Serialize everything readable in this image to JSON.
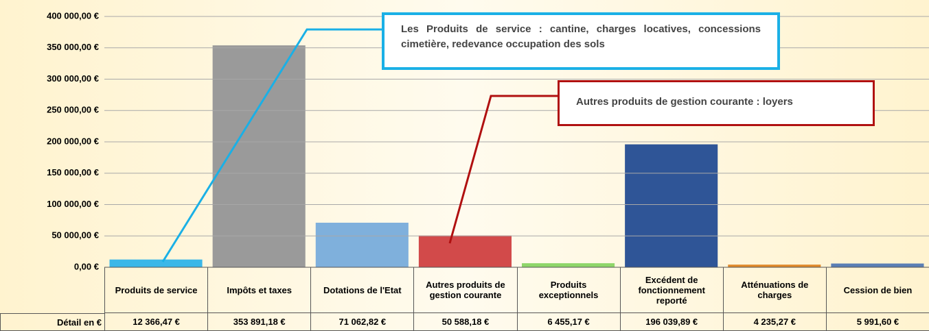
{
  "chart_data": {
    "type": "bar",
    "categories": [
      "Produits de service",
      "Impôts et taxes",
      "Dotations de l'Etat",
      "Autres produits de gestion courante",
      "Produits exceptionnels",
      "Excédent de fonctionnement reporté",
      "Atténuations de charges",
      "Cession de bien"
    ],
    "values": [
      12366.47,
      353891.18,
      71062.82,
      50588.18,
      6455.17,
      196039.89,
      4235.27,
      5991.6
    ],
    "value_labels": [
      "12 366,47 €",
      "353 891,18 €",
      "71 062,82 €",
      "50 588,18 €",
      "6 455,17 €",
      "196 039,89 €",
      "4 235,27 €",
      "5 991,60 €"
    ],
    "colors": [
      "#3bb7e8",
      "#9a9a9a",
      "#7fb0dc",
      "#d24a4a",
      "#8fd66a",
      "#2f5597",
      "#e08a2c",
      "#5b7fb5"
    ],
    "table_row_label": "Détail en €",
    "ylim": [
      0,
      400000
    ],
    "yticks": [
      {
        "value": 0,
        "label": "0,00 €"
      },
      {
        "value": 50000,
        "label": "50 000,00 €"
      },
      {
        "value": 100000,
        "label": "100 000,00 €"
      },
      {
        "value": 150000,
        "label": "150 000,00 €"
      },
      {
        "value": 200000,
        "label": "200 000,00 €"
      },
      {
        "value": 250000,
        "label": "250 000,00 €"
      },
      {
        "value": 300000,
        "label": "300 000,00 €"
      },
      {
        "value": 350000,
        "label": "350 000,00 €"
      },
      {
        "value": 400000,
        "label": "400 000,00 €"
      }
    ],
    "grid": true,
    "annotations": [
      {
        "text": "Les Produits de service : cantine, charges locatives, concessions cimetière, redevance occupation des sols",
        "color": "#1ab0e6"
      },
      {
        "text": "Autres produits de gestion courante : loyers",
        "color": "#b01010"
      }
    ]
  }
}
